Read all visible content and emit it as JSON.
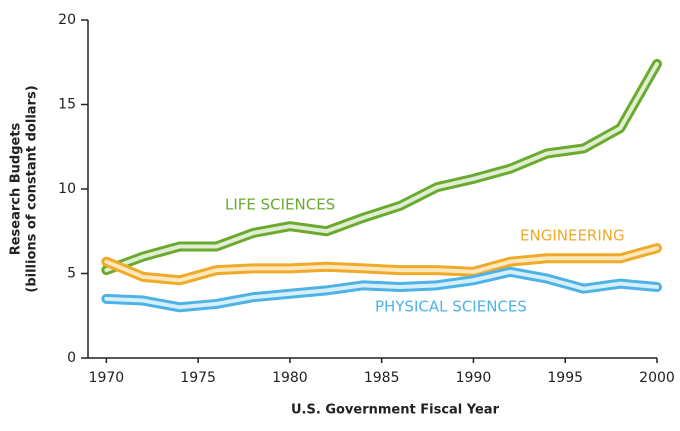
{
  "chart_data": {
    "type": "line",
    "ylabel": [
      "Research Budgets",
      "(billions of constant dollars)"
    ],
    "xlabel": "U.S. Government Fiscal Year",
    "x": [
      1970,
      1972,
      1974,
      1976,
      1978,
      1980,
      1982,
      1984,
      1986,
      1988,
      1990,
      1992,
      1994,
      1996,
      1998,
      2000
    ],
    "series": [
      {
        "name": "LIFE SCIENCES",
        "color": "#6aaa2e",
        "values": [
          5.2,
          6.0,
          6.6,
          6.6,
          7.4,
          7.8,
          7.5,
          8.3,
          9.0,
          10.1,
          10.6,
          11.2,
          12.1,
          12.4,
          13.6,
          17.4
        ]
      },
      {
        "name": "ENGINEERING",
        "color": "#f0aa2a",
        "values": [
          5.7,
          4.8,
          4.6,
          5.2,
          5.3,
          5.3,
          5.4,
          5.3,
          5.2,
          5.2,
          5.1,
          5.7,
          5.9,
          5.9,
          5.9,
          6.5
        ]
      },
      {
        "name": "PHYSICAL SCIENCES",
        "color": "#4db3e6",
        "values": [
          3.5,
          3.4,
          3.0,
          3.2,
          3.6,
          3.8,
          4.0,
          4.3,
          4.2,
          4.3,
          4.6,
          5.1,
          4.7,
          4.1,
          4.4,
          4.2
        ]
      }
    ],
    "xlim": [
      1969,
      2000
    ],
    "xticks": [
      1970,
      1975,
      1980,
      1985,
      1990,
      1995,
      2000
    ],
    "ylim": [
      0,
      20
    ],
    "yticks": [
      0,
      5,
      10,
      15,
      20
    ]
  }
}
